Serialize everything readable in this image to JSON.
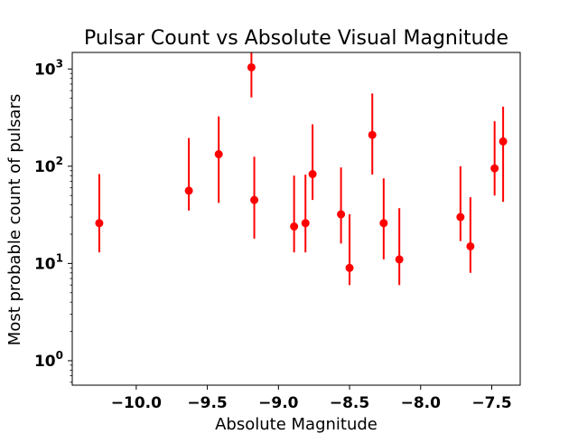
{
  "chart_data": {
    "type": "scatter",
    "title": "Pulsar Count vs Absolute Visual Magnitude",
    "xlabel": "Absolute Magnitude",
    "ylabel": "Most probable count of pulsars",
    "xlim": [
      -10.45,
      -7.3
    ],
    "ylim": [
      0.56,
      1480
    ],
    "yscale": "log",
    "xticks": [
      {
        "value": -10.0,
        "label": "−10.0"
      },
      {
        "value": -9.5,
        "label": "−9.5"
      },
      {
        "value": -9.0,
        "label": "−9.0"
      },
      {
        "value": -8.5,
        "label": "−8.5"
      },
      {
        "value": -8.0,
        "label": "−8.0"
      },
      {
        "value": -7.5,
        "label": "−7.5"
      }
    ],
    "yticks": [
      {
        "value": 1,
        "base": "10",
        "exp": "0"
      },
      {
        "value": 10,
        "base": "10",
        "exp": "1"
      },
      {
        "value": 100,
        "base": "10",
        "exp": "2"
      },
      {
        "value": 1000,
        "base": "10",
        "exp": "3"
      }
    ],
    "grid": false,
    "legend": "none",
    "marker_color": "#ff0000",
    "points": [
      {
        "x": -10.26,
        "y": 26,
        "ylow": 13,
        "yhigh": 83
      },
      {
        "x": -9.63,
        "y": 56,
        "ylow": 35,
        "yhigh": 195
      },
      {
        "x": -9.42,
        "y": 133,
        "ylow": 42,
        "yhigh": 325
      },
      {
        "x": -9.19,
        "y": 1040,
        "ylow": 510,
        "yhigh": 1480
      },
      {
        "x": -9.17,
        "y": 45,
        "ylow": 18,
        "yhigh": 125
      },
      {
        "x": -8.89,
        "y": 24,
        "ylow": 13,
        "yhigh": 80
      },
      {
        "x": -8.81,
        "y": 26,
        "ylow": 13,
        "yhigh": 82
      },
      {
        "x": -8.76,
        "y": 83,
        "ylow": 45,
        "yhigh": 270
      },
      {
        "x": -8.56,
        "y": 32,
        "ylow": 16,
        "yhigh": 97
      },
      {
        "x": -8.5,
        "y": 9,
        "ylow": 6,
        "yhigh": 32
      },
      {
        "x": -8.34,
        "y": 210,
        "ylow": 82,
        "yhigh": 560
      },
      {
        "x": -8.26,
        "y": 26,
        "ylow": 11,
        "yhigh": 75
      },
      {
        "x": -8.15,
        "y": 11,
        "ylow": 6,
        "yhigh": 37
      },
      {
        "x": -7.72,
        "y": 30,
        "ylow": 17,
        "yhigh": 100
      },
      {
        "x": -7.65,
        "y": 15,
        "ylow": 8,
        "yhigh": 48
      },
      {
        "x": -7.48,
        "y": 95,
        "ylow": 50,
        "yhigh": 290
      },
      {
        "x": -7.42,
        "y": 180,
        "ylow": 43,
        "yhigh": 410
      }
    ]
  }
}
